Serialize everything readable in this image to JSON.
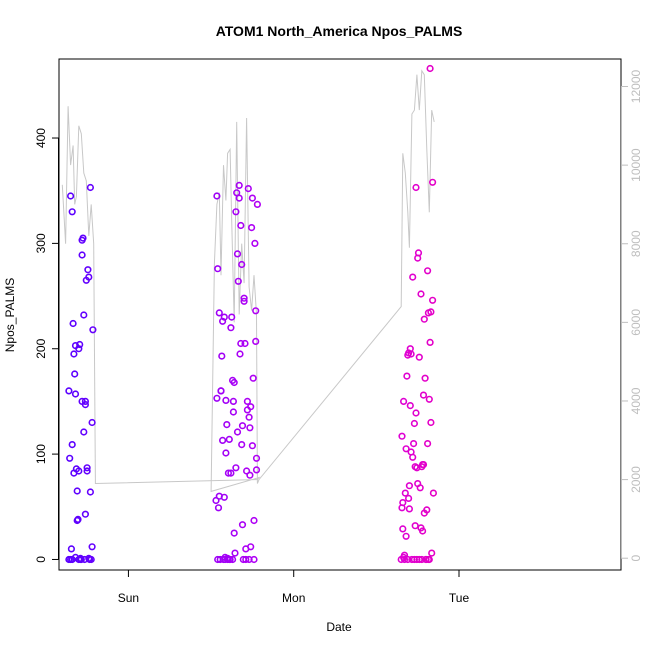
{
  "chart_data": {
    "type": "scatter",
    "title": "ATOM1 North_America Npos_PALMS",
    "xlabel": "Date",
    "ylabel": "Npos_PALMS",
    "x_axis_ticks": [
      {
        "label": "Sun",
        "value": 1.0
      },
      {
        "label": "Mon",
        "value": 2.0
      },
      {
        "label": "Tue",
        "value": 3.0
      }
    ],
    "xlim": [
      0.58,
      3.98
    ],
    "ylim": [
      -10,
      475
    ],
    "y_ticks": [
      0,
      100,
      200,
      300,
      400
    ],
    "y2_label": "",
    "y2lim": [
      -300,
      12700
    ],
    "y2_ticks": [
      0,
      2000,
      4000,
      6000,
      8000,
      10000,
      12000
    ],
    "grid": false,
    "legend": "none",
    "colors": {
      "axis": "#000000",
      "secondary_axis": "#bebebe",
      "line": "#c8c8c8",
      "point_start": "#5a00ff",
      "point_mid": "#d400f0",
      "point_end": "#ff0080"
    },
    "series": [
      {
        "type": "points",
        "x": [
          0.64,
          0.645,
          0.65,
          0.655,
          0.66,
          0.665,
          0.67,
          0.675,
          0.68,
          0.685,
          0.69,
          0.695,
          0.7,
          0.705,
          0.71,
          0.715,
          0.72,
          0.725,
          0.73,
          0.735,
          0.74,
          0.745,
          0.75,
          0.755,
          0.76,
          0.765,
          0.77,
          0.775,
          0.78,
          0.785,
          0.64,
          0.66,
          0.68,
          0.7,
          0.72,
          0.74,
          0.76,
          0.78,
          0.65,
          0.67,
          0.69,
          0.71,
          0.73,
          0.75,
          0.77,
          0.66,
          0.7,
          0.74,
          0.68,
          0.72,
          1.53,
          1.535,
          1.54,
          1.545,
          1.55,
          1.555,
          1.56,
          1.565,
          1.57,
          1.575,
          1.58,
          1.585,
          1.59,
          1.595,
          1.6,
          1.605,
          1.61,
          1.615,
          1.62,
          1.625,
          1.63,
          1.635,
          1.64,
          1.645,
          1.65,
          1.655,
          1.66,
          1.665,
          1.67,
          1.675,
          1.68,
          1.685,
          1.69,
          1.695,
          1.7,
          1.705,
          1.71,
          1.715,
          1.72,
          1.725,
          1.73,
          1.735,
          1.74,
          1.745,
          1.75,
          1.755,
          1.76,
          1.765,
          1.77,
          1.775,
          1.78,
          1.54,
          1.56,
          1.58,
          1.6,
          1.62,
          1.64,
          1.66,
          1.68,
          1.7,
          1.72,
          1.74,
          1.76,
          1.55,
          1.59,
          1.63,
          1.67,
          1.71,
          1.75,
          1.57,
          1.61,
          1.65,
          1.69,
          1.73,
          1.77,
          1.535,
          1.585,
          1.635,
          1.685,
          1.735,
          1.775,
          2.65,
          2.655,
          2.66,
          2.665,
          2.67,
          2.675,
          2.68,
          2.685,
          2.69,
          2.695,
          2.7,
          2.705,
          2.71,
          2.715,
          2.72,
          2.725,
          2.73,
          2.735,
          2.74,
          2.745,
          2.75,
          2.755,
          2.76,
          2.765,
          2.77,
          2.775,
          2.78,
          2.785,
          2.79,
          2.795,
          2.8,
          2.805,
          2.81,
          2.815,
          2.82,
          2.825,
          2.83,
          2.835,
          2.84,
          2.66,
          2.68,
          2.7,
          2.72,
          2.74,
          2.76,
          2.78,
          2.8,
          2.82,
          2.84,
          2.67,
          2.71,
          2.75,
          2.79,
          2.83,
          2.69,
          2.73,
          2.77,
          2.81,
          2.655,
          2.695,
          2.735,
          2.775,
          2.815,
          2.845,
          2.665,
          2.705,
          2.745,
          2.785,
          2.825
        ],
        "y": [
          160,
          96,
          345,
          10,
          330,
          224,
          195,
          176,
          157,
          86,
          65,
          38,
          0,
          204,
          1,
          0,
          150,
          305,
          232,
          0,
          147,
          265,
          87,
          275,
          268,
          0,
          353,
          0,
          130,
          218,
          0,
          109,
          203,
          200,
          303,
          43,
          1,
          12,
          0,
          82,
          37,
          0,
          121,
          84,
          64,
          0,
          84,
          150,
          2,
          289,
          56,
          345,
          276,
          49,
          234,
          0,
          160,
          193,
          113,
          0,
          59,
          2,
          101,
          128,
          1,
          82,
          114,
          0,
          220,
          230,
          0,
          140,
          25,
          6,
          330,
          348,
          121,
          264,
          355,
          195,
          317,
          109,
          33,
          0,
          245,
          205,
          10,
          84,
          150,
          352,
          0,
          80,
          145,
          315,
          343,
          172,
          0,
          300,
          236,
          96,
          337,
          0,
          160,
          230,
          0,
          82,
          168,
          290,
          205,
          248,
          142,
          12,
          37,
          60,
          151,
          170,
          343,
          0,
          108,
          226,
          0,
          87,
          127,
          135,
          207,
          153,
          0,
          150,
          280,
          125,
          85,
          0,
          117,
          54,
          150,
          0,
          63,
          22,
          174,
          0,
          196,
          48,
          146,
          195,
          0,
          268,
          110,
          0,
          88,
          353,
          0,
          286,
          291,
          0,
          68,
          252,
          0,
          90,
          90,
          228,
          172,
          0,
          47,
          274,
          234,
          0,
          206,
          130,
          6,
          358,
          29,
          105,
          70,
          97,
          139,
          192,
          27,
          0,
          152,
          246,
          4,
          102,
          72,
          44,
          235,
          194,
          129,
          30,
          110,
          49,
          58,
          32,
          88,
          0,
          63,
          2,
          200,
          87,
          156,
          466
        ],
        "note": "Npos_PALMS"
      },
      {
        "type": "line",
        "axis": "secondary",
        "x": [
          0.6,
          0.62,
          0.635,
          0.65,
          0.665,
          0.675,
          0.685,
          0.7,
          0.715,
          0.73,
          0.745,
          0.76,
          0.775,
          0.79,
          0.8,
          1.78,
          1.79,
          1.5,
          1.52,
          1.535,
          1.55,
          1.56,
          1.575,
          1.59,
          1.6,
          1.615,
          1.625,
          1.64,
          1.655,
          1.67,
          1.685,
          1.7,
          1.715,
          1.73,
          1.745,
          1.76,
          1.775,
          1.78,
          1.79,
          2.65,
          2.66,
          2.675,
          2.69,
          2.7,
          2.715,
          2.73,
          2.745,
          2.76,
          2.775,
          2.79,
          2.805,
          2.82,
          2.835,
          2.85
        ],
        "y": [
          9500,
          8000,
          11500,
          10000,
          10500,
          9000,
          9200,
          11000,
          10800,
          9800,
          9600,
          8200,
          9000,
          8000,
          1900,
          2000,
          2050,
          1700,
          7500,
          9000,
          9300,
          7200,
          10000,
          9100,
          10300,
          10400,
          8600,
          6000,
          11100,
          6200,
          8000,
          7000,
          11200,
          6900,
          6300,
          7200,
          6200,
          1900,
          2000,
          6400,
          10300,
          9800,
          8800,
          7900,
          11300,
          11400,
          12300,
          11400,
          12400,
          12300,
          10400,
          8800,
          11400,
          11100
        ],
        "note": "secondary series"
      }
    ]
  }
}
